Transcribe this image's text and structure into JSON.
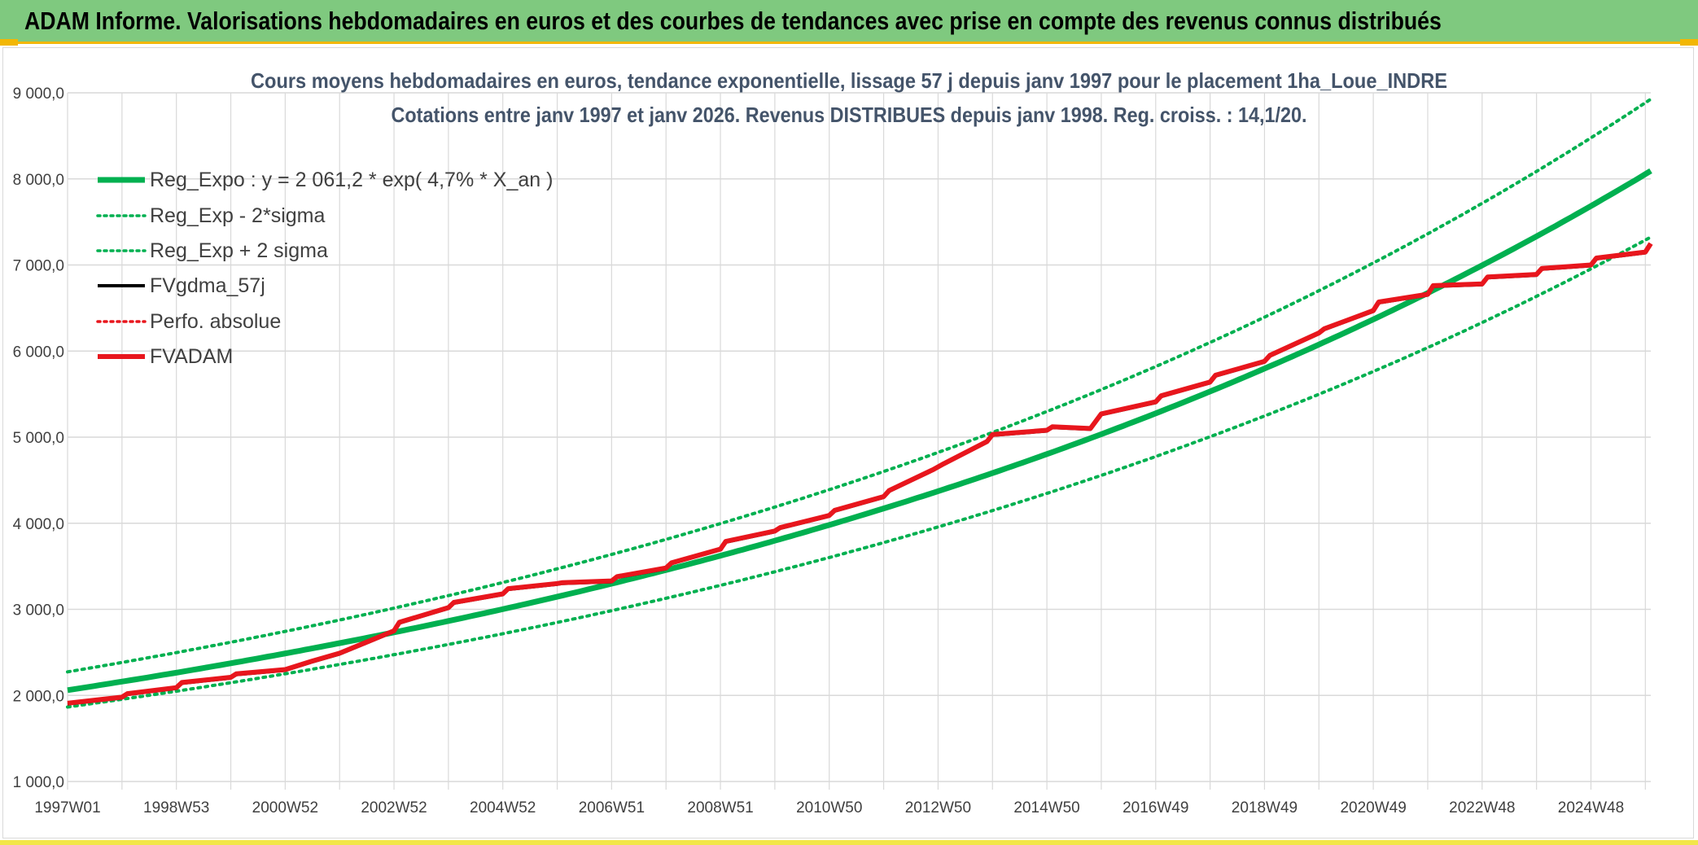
{
  "banner": {
    "title": "ADAM Informe. Valorisations hebdomadaires en euros et des courbes de tendances avec prise en compte des revenus connus distribués"
  },
  "chart_data": {
    "type": "line",
    "title": "Cours moyens hebdomadaires en euros, tendance exponentielle, lissage 57 j depuis janv 1997 pour le placement 1ha_Loue_INDRE",
    "subtitle": "Cotations entre janv 1997 et janv 2026. Revenus DISTRIBUES depuis janv 1998. Reg. croiss. : 14,1/20.",
    "xlabel": "",
    "ylabel": "",
    "ylim": [
      1000,
      9000
    ],
    "xlim": [
      1997.0,
      2026.1
    ],
    "y_ticks": [
      "1 000,0",
      "2 000,0",
      "3 000,0",
      "4 000,0",
      "5 000,0",
      "6 000,0",
      "7 000,0",
      "8 000,0",
      "9 000,0"
    ],
    "y_tick_values": [
      1000,
      2000,
      3000,
      4000,
      5000,
      6000,
      7000,
      8000,
      9000
    ],
    "x_ticks": [
      "1997W01",
      "1998W53",
      "2000W52",
      "2002W52",
      "2004W52",
      "2006W51",
      "2008W51",
      "2010W50",
      "2012W50",
      "2014W50",
      "2016W49",
      "2018W49",
      "2020W49",
      "2022W48",
      "2024W48"
    ],
    "x_tick_values": [
      1997,
      1999,
      2001,
      2003,
      2005,
      2007,
      2009,
      2011,
      2013,
      2015,
      2017,
      2019,
      2021,
      2023,
      2025
    ],
    "grid": true,
    "legend_position": "top-left",
    "regression": {
      "a": 2061.2,
      "rate": 0.047,
      "sigma_factor_low": 0.905,
      "sigma_factor_high": 1.103
    },
    "colors": {
      "green": "#00b050",
      "red": "#e8161d",
      "black": "#000000",
      "grid": "#d9d9d9"
    },
    "series": [
      {
        "name": "Reg_Expo : y = 2 061,2 * exp( 4,7% *  X_an )",
        "color": "#00b050",
        "style": "solid-thick"
      },
      {
        "name": "Reg_Exp - 2*sigma",
        "color": "#00b050",
        "style": "dotted"
      },
      {
        "name": "Reg_Exp + 2 sigma",
        "color": "#00b050",
        "style": "dotted"
      },
      {
        "name": "FVgdma_57j",
        "color": "#000000",
        "style": "solid"
      },
      {
        "name": "Perfo. absolue",
        "color": "#e8161d",
        "style": "dotted"
      },
      {
        "name": "FVADAM",
        "color": "#e8161d",
        "style": "solid-thick"
      }
    ],
    "fvadam_points": {
      "x": [
        1997.0,
        1998.0,
        1998.1,
        1999.0,
        1999.1,
        2000.0,
        2000.1,
        2001.0,
        2001.5,
        2002.0,
        2002.5,
        2003.0,
        2003.1,
        2004.0,
        2004.1,
        2005.0,
        2005.1,
        2006.0,
        2006.1,
        2007.0,
        2007.1,
        2008.0,
        2008.1,
        2009.0,
        2009.1,
        2010.0,
        2010.1,
        2011.0,
        2011.1,
        2012.0,
        2012.1,
        2012.9,
        2013.1,
        2013.9,
        2014.0,
        2015.0,
        2015.1,
        2015.8,
        2016.0,
        2017.0,
        2017.1,
        2018.0,
        2018.1,
        2019.0,
        2019.1,
        2020.0,
        2020.1,
        2021.0,
        2021.1,
        2022.0,
        2022.1,
        2023.0,
        2023.1,
        2024.0,
        2024.1,
        2025.0,
        2025.1,
        2026.0,
        2026.1
      ],
      "y": [
        1910,
        1980,
        2020,
        2090,
        2150,
        2210,
        2250,
        2300,
        2400,
        2490,
        2620,
        2750,
        2850,
        3020,
        3080,
        3180,
        3240,
        3300,
        3310,
        3330,
        3380,
        3480,
        3540,
        3700,
        3790,
        3910,
        3950,
        4090,
        4150,
        4310,
        4380,
        4620,
        4690,
        4950,
        5030,
        5080,
        5120,
        5100,
        5270,
        5410,
        5480,
        5640,
        5720,
        5880,
        5950,
        6210,
        6260,
        6470,
        6570,
        6660,
        6760,
        6780,
        6860,
        6890,
        6960,
        7000,
        7080,
        7150,
        7250
      ]
    }
  }
}
